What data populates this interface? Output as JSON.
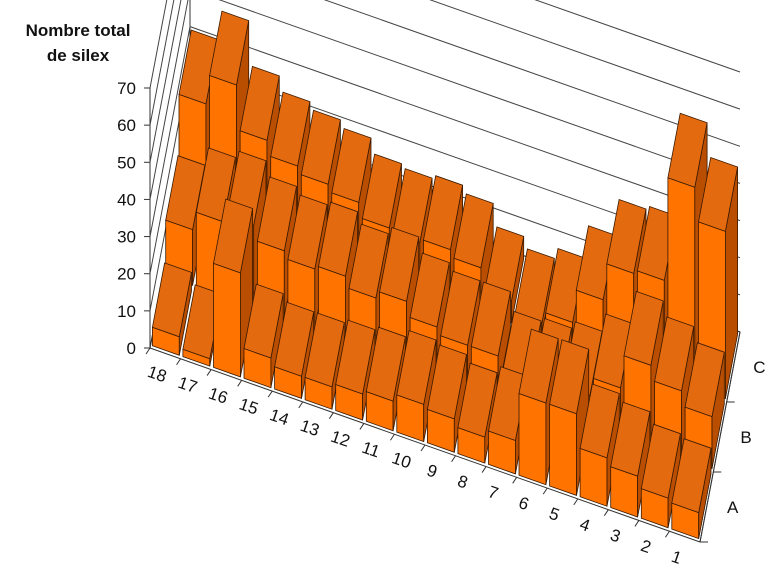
{
  "chart_data": {
    "type": "bar",
    "subtype": "3d-column-grid",
    "title": "",
    "ylabel_lines": [
      "Nombre total",
      "de silex"
    ],
    "ylim": [
      0,
      70
    ],
    "yticks": [
      "0",
      "10",
      "20",
      "30",
      "40",
      "50",
      "60",
      "70"
    ],
    "categories": [
      "18",
      "17",
      "16",
      "15",
      "14",
      "13",
      "12",
      "11",
      "10",
      "9",
      "8",
      "7",
      "6",
      "5",
      "4",
      "3",
      "2",
      "1"
    ],
    "series": [
      {
        "name": "A",
        "values": [
          5,
          2,
          28,
          8,
          6,
          6,
          7,
          8,
          10,
          9,
          7,
          9,
          22,
          22,
          13,
          11,
          8,
          7
        ]
      },
      {
        "name": "B",
        "values": [
          15,
          20,
          22,
          18,
          16,
          17,
          14,
          16,
          12,
          10,
          10,
          5,
          6,
          8,
          13,
          22,
          18,
          14
        ]
      },
      {
        "name": "C",
        "values": [
          30,
          38,
          26,
          22,
          20,
          18,
          14,
          13,
          14,
          12,
          6,
          3,
          6,
          15,
          25,
          26,
          54,
          45
        ]
      }
    ],
    "colors": {
      "front": "#ff7300",
      "top": "#e36a0f",
      "side": "#b94d00",
      "edge": "#3a1a00"
    },
    "grid": true,
    "legend": "none"
  }
}
